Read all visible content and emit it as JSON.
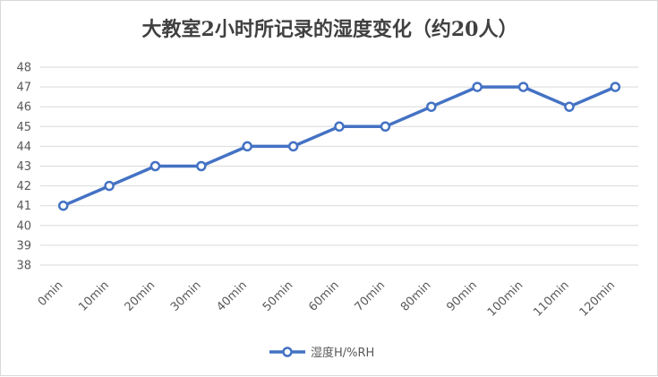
{
  "chart_data": {
    "type": "line",
    "title": "大教室2小时所记录的湿度变化（约20人）",
    "xlabel": "",
    "ylabel": "",
    "categories": [
      "0min",
      "10min",
      "20min",
      "30min",
      "40min",
      "50min",
      "60min",
      "70min",
      "80min",
      "90min",
      "100min",
      "110min",
      "120min"
    ],
    "series": [
      {
        "name": "湿度H/%RH",
        "values": [
          41,
          42,
          43,
          43,
          44,
          44,
          45,
          45,
          46,
          47,
          47,
          46,
          47
        ]
      }
    ],
    "ylim": [
      38,
      48
    ],
    "yticks": [
      38,
      39,
      40,
      41,
      42,
      43,
      44,
      45,
      46,
      47,
      48
    ],
    "grid": true,
    "legend": "bottom",
    "colors": {
      "line": "#4472C4",
      "marker_fill": "#ffffff",
      "grid": "#d9d9d9",
      "text": "#595959"
    }
  }
}
